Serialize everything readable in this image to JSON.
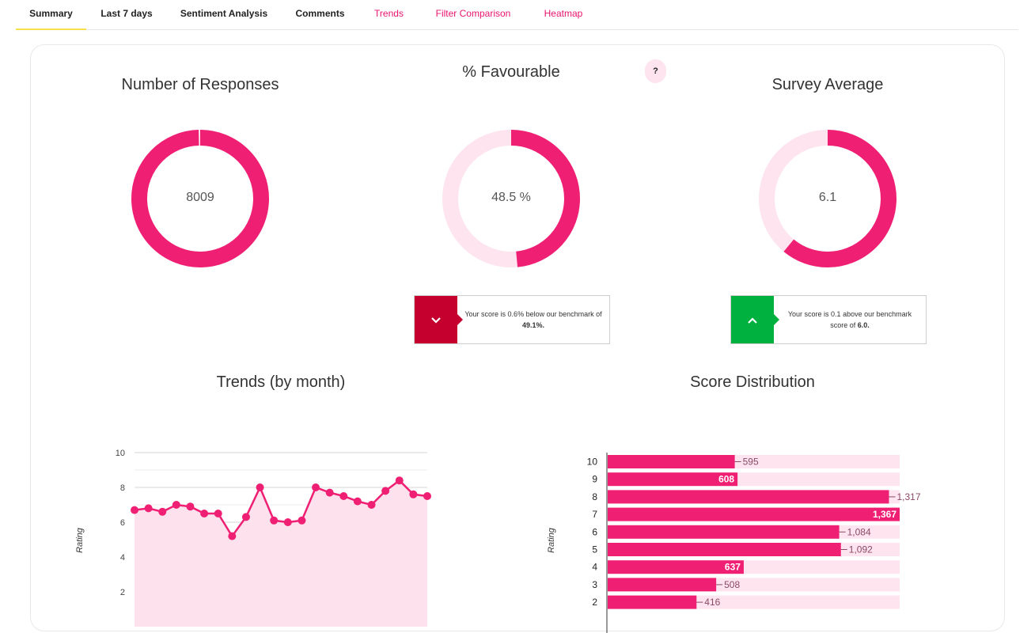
{
  "tabs": [
    {
      "label": "Summary",
      "style": "dark",
      "active": true
    },
    {
      "label": "Last 7 days",
      "style": "dark",
      "active": false
    },
    {
      "label": "Sentiment Analysis",
      "style": "dark",
      "active": false
    },
    {
      "label": "Comments",
      "style": "dark",
      "active": false
    },
    {
      "label": "Trends",
      "style": "pink",
      "active": false
    },
    {
      "label": "Filter Comparison",
      "style": "pink",
      "active": false
    },
    {
      "label": "Heatmap",
      "style": "pink",
      "active": false
    }
  ],
  "colors": {
    "accent": "#ef1f74",
    "track": "#fde4ee",
    "down": "#c5002f",
    "up": "#00b140",
    "active_tab_underline": "#f7e04b"
  },
  "kpis": {
    "responses": {
      "title": "Number of Responses",
      "value_label": "8009",
      "fraction": 1.0
    },
    "favourable": {
      "title": "% Favourable",
      "value_label": "48.5 %",
      "fraction": 0.485,
      "help": "?"
    },
    "average": {
      "title": "Survey Average",
      "value_label": "6.1",
      "fraction": 0.61
    }
  },
  "benchmarks": {
    "favourable": {
      "direction": "down",
      "icon": "chevron-down-icon",
      "text": "Your score is 0.6% below our benchmark of ",
      "bold": "49.1%."
    },
    "average": {
      "direction": "up",
      "icon": "chevron-up-icon",
      "text": "Your score is 0.1 above our benchmark score of ",
      "bold": "6.0."
    }
  },
  "chart_data": [
    {
      "type": "area",
      "title": "Trends (by month)",
      "ylabel": "Rating",
      "ylim": [
        0,
        10
      ],
      "yticks": [
        2,
        4,
        6,
        8,
        10
      ],
      "grid": true,
      "values": [
        6.7,
        6.8,
        6.6,
        7.0,
        6.9,
        6.5,
        6.5,
        5.2,
        6.3,
        8.0,
        6.1,
        6.0,
        6.1,
        8.0,
        7.7,
        7.5,
        7.2,
        7.0,
        7.8,
        8.4,
        7.6,
        7.5
      ]
    },
    {
      "type": "bar",
      "orientation": "horizontal",
      "title": "Score Distribution",
      "ylabel": "Rating",
      "categories": [
        "10",
        "9",
        "8",
        "7",
        "6",
        "5",
        "4",
        "3",
        "2"
      ],
      "values": [
        595,
        608,
        1317,
        1367,
        1084,
        1092,
        637,
        508,
        416
      ],
      "labels": [
        "595",
        "608",
        "1,317",
        "1,367",
        "1,084",
        "1,092",
        "637",
        "508",
        "416"
      ],
      "xlim": [
        0,
        1367
      ]
    }
  ]
}
